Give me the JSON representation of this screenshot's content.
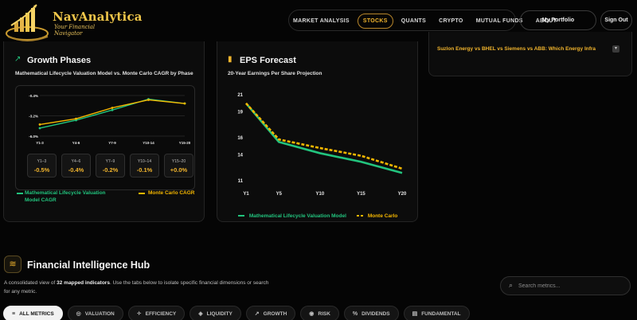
{
  "brand": {
    "name": "NavAnalytica",
    "tagline": "Your Financial Navigator"
  },
  "nav": {
    "items": [
      {
        "label": "MARKET ANALYSIS",
        "active": false
      },
      {
        "label": "STOCKS",
        "active": true
      },
      {
        "label": "QUANTS",
        "active": false
      },
      {
        "label": "CRYPTO",
        "active": false
      },
      {
        "label": "MUTUAL FUNDS",
        "active": false
      },
      {
        "label": "ABOUT",
        "active": false
      }
    ],
    "portfolio_label": "My Portfolio",
    "signout_label": "Sign Out"
  },
  "growth_card": {
    "title": "Growth Phases",
    "subtitle": "Mathematical Lifecycle Valuation Model vs. Monte Carlo CAGR by Phase",
    "phases": [
      {
        "label": "Y1–3",
        "value": "-0.5%"
      },
      {
        "label": "Y4–6",
        "value": "-0.4%"
      },
      {
        "label": "Y7–9",
        "value": "-0.2%"
      },
      {
        "label": "Y10–14",
        "value": "-0.1%"
      },
      {
        "label": "Y15–20",
        "value": "+0.0%"
      }
    ],
    "legend": {
      "model": "Mathematical Lifecycle Valuation Model CAGR",
      "monte": "Monte Carlo CAGR"
    }
  },
  "eps_card": {
    "title": "EPS Forecast",
    "subtitle": "20-Year Earnings Per Share Projection",
    "legend": {
      "model": "Mathematical Lifecycle Valuation Model",
      "monte": "Monte Carlo"
    }
  },
  "news": {
    "title": "Suzlon Energy vs BHEL vs Siemens vs ABB: Which Energy Infra",
    "caret": "▾"
  },
  "hub": {
    "title": "Financial Intelligence Hub",
    "desc_prefix": "A consolidated view of ",
    "desc_count": "32 mapped indicators",
    "desc_suffix": ". Use the tabs below to isolate specific financial dimensions or search for any metric.",
    "search_placeholder": "Search metrics...",
    "tabs": [
      {
        "label": "ALL METRICS",
        "icon": "layers-icon",
        "glyph": "≡",
        "active": true
      },
      {
        "label": "VALUATION",
        "icon": "coin-icon",
        "glyph": "◎",
        "active": false
      },
      {
        "label": "EFFICIENCY",
        "icon": "bolt-icon",
        "glyph": "✧",
        "active": false
      },
      {
        "label": "LIQUIDITY",
        "icon": "drop-icon",
        "glyph": "◈",
        "active": false
      },
      {
        "label": "GROWTH",
        "icon": "trend-icon",
        "glyph": "↗",
        "active": false
      },
      {
        "label": "RISK",
        "icon": "shield-icon",
        "glyph": "◉",
        "active": false
      },
      {
        "label": "DIVIDENDS",
        "icon": "percent-icon",
        "glyph": "%",
        "active": false
      },
      {
        "label": "FUNDAMENTAL",
        "icon": "building-icon",
        "glyph": "▤",
        "active": false
      }
    ]
  },
  "colors": {
    "accent": "#f2b52d",
    "model": "#22c47e",
    "monte": "#f5b700"
  },
  "chart_data": [
    {
      "type": "line",
      "title": "Growth Phases",
      "categories": [
        "Y1-3",
        "Y4-6",
        "Y7-9",
        "Y10-14",
        "Y15-20"
      ],
      "yticks": [
        "-0.4%",
        "-3.2%",
        "-6.0%"
      ],
      "ylim": [
        -6.0,
        -0.4
      ],
      "series": [
        {
          "name": "Mathematical Lifecycle Valuation Model CAGR",
          "values": [
            -4.9,
            -3.8,
            -2.4,
            -0.9,
            -1.5
          ]
        },
        {
          "name": "Monte Carlo CAGR",
          "values": [
            -4.4,
            -3.6,
            -2.1,
            -1.0,
            -1.5
          ]
        }
      ],
      "legend": "bottom"
    },
    {
      "type": "line",
      "title": "EPS Forecast",
      "x": [
        1,
        5,
        10,
        15,
        20
      ],
      "xticks": [
        "Y1",
        "Y5",
        "Y10",
        "Y15",
        "Y20"
      ],
      "yticks": [
        "21",
        "19",
        "16",
        "14",
        "11"
      ],
      "ylim": [
        11,
        21
      ],
      "series": [
        {
          "name": "Mathematical Lifecycle Valuation Model",
          "values": [
            20.0,
            15.5,
            14.2,
            13.2,
            11.9
          ]
        },
        {
          "name": "Monte Carlo",
          "values": [
            20.0,
            15.8,
            14.8,
            13.9,
            12.4
          ]
        }
      ],
      "legend": "bottom"
    }
  ]
}
